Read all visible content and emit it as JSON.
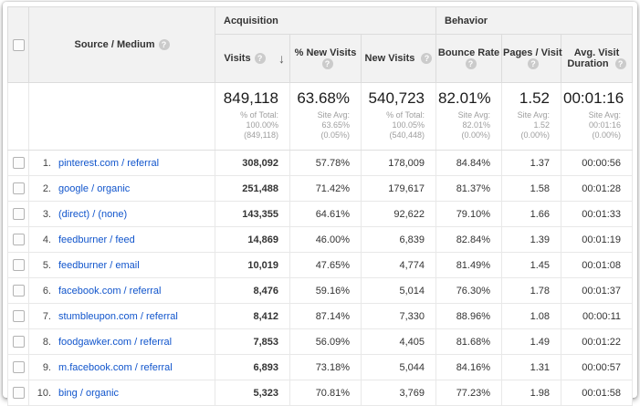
{
  "ui": {
    "help_glyph": "?",
    "sort_arrow_glyph": "↓",
    "link_color": "#1155cc",
    "header_bg": "#f2f2f2"
  },
  "header": {
    "groups": [
      {
        "label": "Acquisition"
      },
      {
        "label": "Behavior"
      }
    ],
    "source_label": "Source / Medium",
    "metrics": [
      {
        "label": "Visits",
        "sorted": "descending"
      },
      {
        "label": "% New Visits"
      },
      {
        "label": "New Visits"
      },
      {
        "label": "Bounce Rate"
      },
      {
        "label": "Pages / Visit"
      },
      {
        "label": "Avg. Visit Duration"
      }
    ]
  },
  "summary": {
    "visits": {
      "value": "849,118",
      "sub_lines": [
        "% of Total:",
        "100.00%",
        "(849,118)"
      ]
    },
    "pct_new_visits": {
      "value": "63.68%",
      "sub_lines": [
        "Site Avg:",
        "63.65%",
        "(0.05%)"
      ]
    },
    "new_visits": {
      "value": "540,723",
      "sub_lines": [
        "% of Total:",
        "100.05%",
        "(540,448)"
      ]
    },
    "bounce_rate": {
      "value": "82.01%",
      "sub_lines": [
        "Site Avg:",
        "82.01%",
        "(0.00%)"
      ]
    },
    "pages_per_visit": {
      "value": "1.52",
      "sub_lines": [
        "Site Avg:",
        "1.52 (0.00%)"
      ]
    },
    "avg_visit_duration": {
      "value": "00:01:16",
      "sub_lines": [
        "Site Avg:",
        "00:01:16",
        "(0.00%)"
      ]
    }
  },
  "rows": [
    {
      "rank": "1.",
      "source": "pinterest.com / referral",
      "visits": "308,092",
      "pct_new": "57.78%",
      "new_visits": "178,009",
      "bounce": "84.84%",
      "pages": "1.37",
      "duration": "00:00:56"
    },
    {
      "rank": "2.",
      "source": "google / organic",
      "visits": "251,488",
      "pct_new": "71.42%",
      "new_visits": "179,617",
      "bounce": "81.37%",
      "pages": "1.58",
      "duration": "00:01:28"
    },
    {
      "rank": "3.",
      "source": "(direct) / (none)",
      "visits": "143,355",
      "pct_new": "64.61%",
      "new_visits": "92,622",
      "bounce": "79.10%",
      "pages": "1.66",
      "duration": "00:01:33"
    },
    {
      "rank": "4.",
      "source": "feedburner / feed",
      "visits": "14,869",
      "pct_new": "46.00%",
      "new_visits": "6,839",
      "bounce": "82.84%",
      "pages": "1.39",
      "duration": "00:01:19"
    },
    {
      "rank": "5.",
      "source": "feedburner / email",
      "visits": "10,019",
      "pct_new": "47.65%",
      "new_visits": "4,774",
      "bounce": "81.49%",
      "pages": "1.45",
      "duration": "00:01:08"
    },
    {
      "rank": "6.",
      "source": "facebook.com / referral",
      "visits": "8,476",
      "pct_new": "59.16%",
      "new_visits": "5,014",
      "bounce": "76.30%",
      "pages": "1.78",
      "duration": "00:01:37"
    },
    {
      "rank": "7.",
      "source": "stumbleupon.com / referral",
      "visits": "8,412",
      "pct_new": "87.14%",
      "new_visits": "7,330",
      "bounce": "88.96%",
      "pages": "1.08",
      "duration": "00:00:11"
    },
    {
      "rank": "8.",
      "source": "foodgawker.com / referral",
      "visits": "7,853",
      "pct_new": "56.09%",
      "new_visits": "4,405",
      "bounce": "81.68%",
      "pages": "1.49",
      "duration": "00:01:22"
    },
    {
      "rank": "9.",
      "source": "m.facebook.com / referral",
      "visits": "6,893",
      "pct_new": "73.18%",
      "new_visits": "5,044",
      "bounce": "84.16%",
      "pages": "1.31",
      "duration": "00:00:57"
    },
    {
      "rank": "10.",
      "source": "bing / organic",
      "visits": "5,323",
      "pct_new": "70.81%",
      "new_visits": "3,769",
      "bounce": "77.23%",
      "pages": "1.98",
      "duration": "00:01:58"
    }
  ]
}
